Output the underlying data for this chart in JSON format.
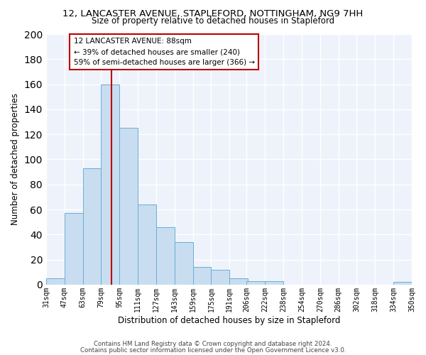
{
  "title": "12, LANCASTER AVENUE, STAPLEFORD, NOTTINGHAM, NG9 7HH",
  "subtitle": "Size of property relative to detached houses in Stapleford",
  "xlabel": "Distribution of detached houses by size in Stapleford",
  "ylabel": "Number of detached properties",
  "bar_color": "#c8ddf0",
  "bar_edge_color": "#6aaed6",
  "background_color": "#eef2fa",
  "grid_color": "#ffffff",
  "property_line_color": "#bb0000",
  "bin_labels": [
    "31sqm",
    "47sqm",
    "63sqm",
    "79sqm",
    "95sqm",
    "111sqm",
    "127sqm",
    "143sqm",
    "159sqm",
    "175sqm",
    "191sqm",
    "206sqm",
    "222sqm",
    "238sqm",
    "254sqm",
    "270sqm",
    "286sqm",
    "302sqm",
    "318sqm",
    "334sqm",
    "350sqm"
  ],
  "bin_edges": [
    31,
    47,
    63,
    79,
    95,
    111,
    127,
    143,
    159,
    175,
    191,
    206,
    222,
    238,
    254,
    270,
    286,
    302,
    318,
    334,
    350
  ],
  "bar_heights": [
    5,
    57,
    93,
    160,
    125,
    64,
    46,
    34,
    14,
    12,
    5,
    3,
    3,
    0,
    0,
    0,
    0,
    0,
    0,
    2
  ],
  "property_size": 88,
  "annotation_title": "12 LANCASTER AVENUE: 88sqm",
  "annotation_line1": "← 39% of detached houses are smaller (240)",
  "annotation_line2": "59% of semi-detached houses are larger (366) →",
  "ylim": [
    0,
    200
  ],
  "yticks": [
    0,
    20,
    40,
    60,
    80,
    100,
    120,
    140,
    160,
    180,
    200
  ],
  "footer1": "Contains HM Land Registry data © Crown copyright and database right 2024.",
  "footer2": "Contains public sector information licensed under the Open Government Licence v3.0."
}
